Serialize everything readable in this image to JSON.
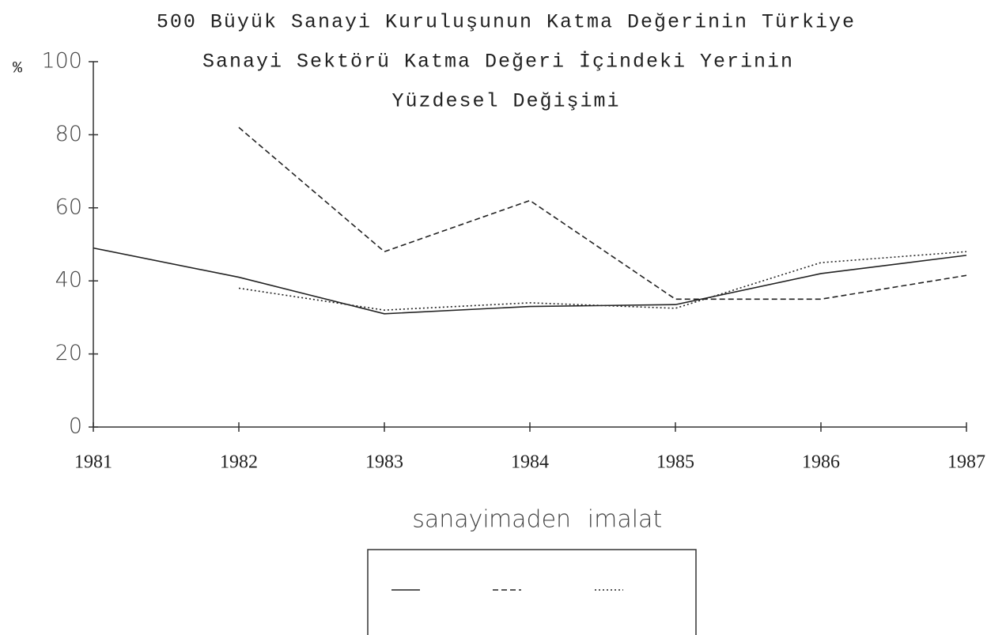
{
  "chart_data": {
    "type": "line",
    "title": [
      "500 Büyük Sanayi Kuruluşunun Katma Değerinin Türkiye",
      "Sanayi Sektörü Katma Değeri İçindeki Yerinin",
      "Yüzdesel Değişimi"
    ],
    "ylabel": "%",
    "x": [
      1981,
      1982,
      1983,
      1984,
      1985,
      1986,
      1987
    ],
    "xlim": [
      1981,
      1987
    ],
    "xticks": [
      1981,
      1982,
      1983,
      1984,
      1985,
      1986,
      1987
    ],
    "ylim": [
      0,
      100
    ],
    "yticks": [
      0,
      20,
      40,
      60,
      80,
      100
    ],
    "series": [
      {
        "name": "sanayi",
        "color": "#222222",
        "style": "solid",
        "values": [
          49,
          41,
          31,
          33,
          33.5,
          42,
          47
        ]
      },
      {
        "name": "maden",
        "color": "#222222",
        "style": "dashed",
        "values": [
          null,
          82,
          48,
          62,
          35,
          35,
          41.5
        ]
      },
      {
        "name": "imalat",
        "color": "#222222",
        "style": "dotted",
        "values": [
          null,
          38,
          32,
          34,
          32.5,
          45,
          48
        ]
      }
    ]
  }
}
